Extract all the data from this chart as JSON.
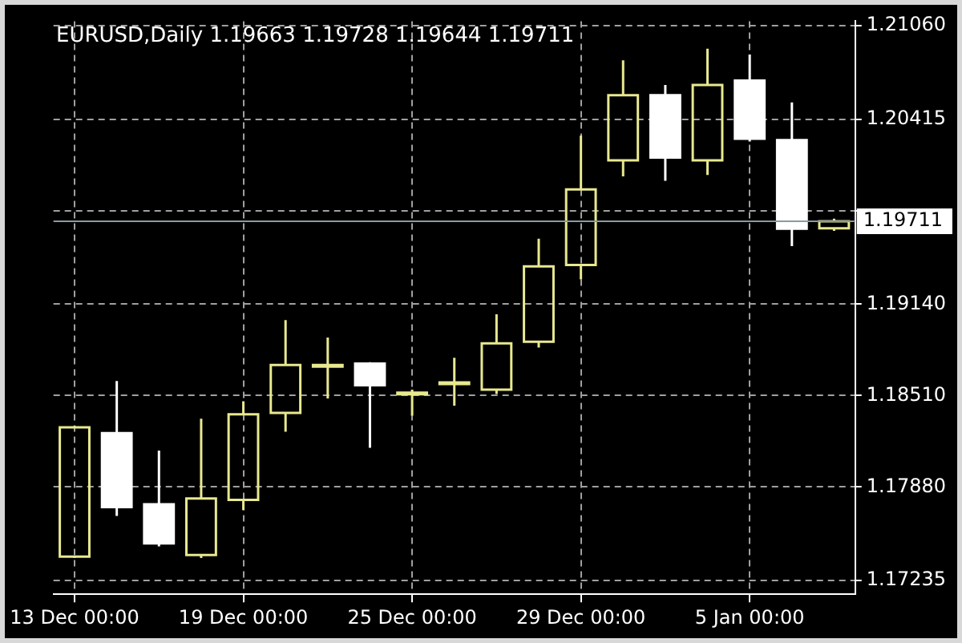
{
  "chart_data": {
    "type": "candlestick",
    "title": "EURUSD,Daily 1.19663 1.19728 1.19644 1.19711",
    "categories": [
      "13 Dec 00:00",
      null,
      null,
      null,
      "19 Dec 00:00",
      null,
      null,
      null,
      "25 Dec 00:00",
      null,
      null,
      null,
      "29 Dec 00:00",
      null,
      null,
      null,
      "5 Jan 00:00",
      null,
      null
    ],
    "ohlc": [
      [
        1.174,
        1.183,
        1.1739,
        1.1829
      ],
      [
        1.1825,
        1.1861,
        1.1768,
        1.1774
      ],
      [
        1.1776,
        1.1813,
        1.1747,
        1.1749
      ],
      [
        1.1741,
        1.1835,
        1.1739,
        1.178
      ],
      [
        1.1779,
        1.1847,
        1.1772,
        1.1838
      ],
      [
        1.1839,
        1.1903,
        1.1826,
        1.1872
      ],
      [
        1.1871,
        1.1891,
        1.1849,
        1.1872
      ],
      [
        1.1873,
        1.1874,
        1.1815,
        1.1858
      ],
      [
        1.1853,
        1.1855,
        1.1837,
        1.1853
      ],
      [
        1.1859,
        1.1877,
        1.1844,
        1.186
      ],
      [
        1.1855,
        1.1907,
        1.1852,
        1.1887
      ],
      [
        1.1888,
        1.1959,
        1.1884,
        1.194
      ],
      [
        1.1941,
        1.203,
        1.1931,
        1.1993
      ],
      [
        1.2013,
        1.2082,
        1.2002,
        1.2058
      ],
      [
        1.2058,
        1.2065,
        1.1999,
        1.2015
      ],
      [
        1.2013,
        1.209,
        1.2003,
        1.2065
      ],
      [
        1.2068,
        1.2086,
        1.2026,
        1.2028
      ],
      [
        1.2027,
        1.2053,
        1.1954,
        1.1966
      ],
      [
        1.19663,
        1.19728,
        1.19644,
        1.19711
      ]
    ],
    "colors": [
      "#e8e890",
      "#ffffff",
      "#ffffff",
      "#e8e890",
      "#e8e890",
      "#e8e890",
      "#e8e890",
      "#ffffff",
      "#e8e890",
      "#e8e890",
      "#e8e890",
      "#e8e890",
      "#e8e890",
      "#e8e890",
      "#ffffff",
      "#e8e890",
      "#ffffff",
      "#ffffff",
      "#e8e890"
    ],
    "ylim": [
      1.1714,
      1.2109
    ],
    "yticks": [
      {
        "value": 1.2106,
        "label": "1.21060"
      },
      1.20415,
      {
        "value": 1.19785,
        "label": null
      },
      {
        "value": 1.1914,
        "label": "1.19140"
      },
      {
        "value": 1.1851,
        "label": "1.18510"
      },
      {
        "value": 1.1788,
        "label": "1.17880"
      },
      1.17235
    ],
    "grid": true,
    "ref_lines": [
      {
        "axis": "y",
        "value": 1.19711,
        "label": "1.19711",
        "color": "#8c9aa2"
      }
    ]
  }
}
